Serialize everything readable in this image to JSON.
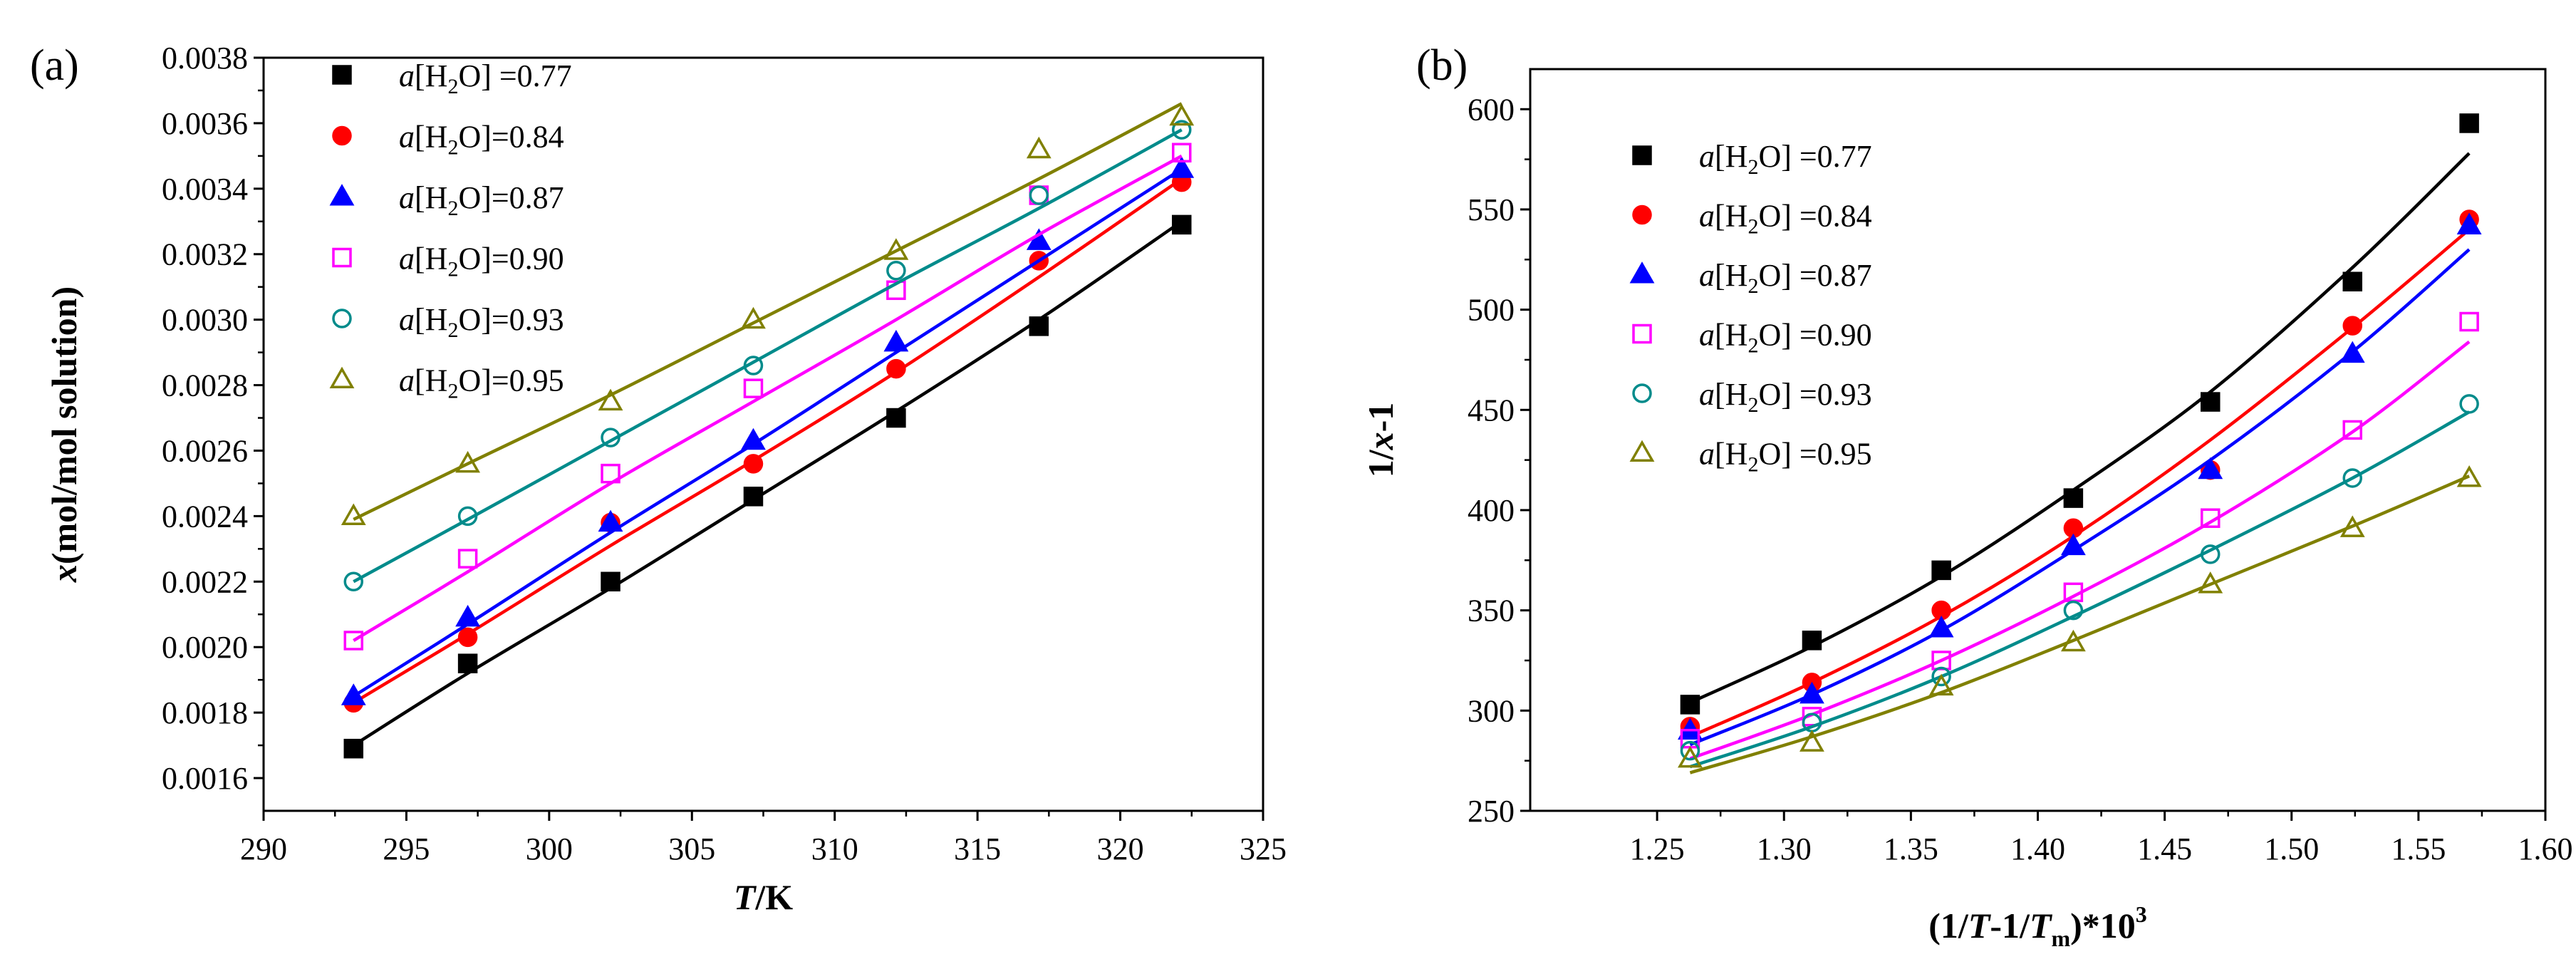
{
  "chart_data": [
    {
      "panel_label": "(a)",
      "type": "scatter",
      "xlabel_italic": "T",
      "xlabel_rest": "/K",
      "ylabel_italic": "x",
      "ylabel_rest": "(mol/mol solution)",
      "xlim": [
        290,
        325
      ],
      "ylim": [
        0.0015,
        0.0038
      ],
      "x_ticks": [
        290,
        295,
        300,
        305,
        310,
        315,
        320,
        325
      ],
      "x_tick_labels": [
        "290",
        "295",
        "300",
        "305",
        "310",
        "315",
        "320",
        "325"
      ],
      "y_ticks": [
        0.0016,
        0.0018,
        0.002,
        0.0022,
        0.0024,
        0.0026,
        0.0028,
        0.003,
        0.0032,
        0.0034,
        0.0036,
        0.0038
      ],
      "y_tick_labels": [
        "0.0016",
        "0.0018",
        "0.0020",
        "0.0022",
        "0.0024",
        "0.0026",
        "0.0028",
        "0.0030",
        "0.0032",
        "0.0034",
        "0.0036",
        "0.0038"
      ],
      "legend_position": "top-left",
      "x": [
        293.15,
        297.15,
        302.15,
        307.15,
        312.15,
        317.15,
        322.15
      ],
      "series": [
        {
          "name": "a[H2O] =0.77",
          "legend": {
            "pre": "a",
            "mid": "[H",
            "sub": "2",
            "post": "O] =0.77"
          },
          "marker": "filled-square",
          "color": "#000000",
          "values": [
            0.00169,
            0.00195,
            0.0022,
            0.00246,
            0.0027,
            0.00298,
            0.00329
          ],
          "fit": [
            0.0017,
            0.00192,
            0.00218,
            0.00245,
            0.00272,
            0.003,
            0.0033
          ]
        },
        {
          "name": "a[H2O]=0.84",
          "legend": {
            "pre": "a",
            "mid": "[H",
            "sub": "2",
            "post": "O]=0.84"
          },
          "marker": "filled-circle",
          "color": "#ff0000",
          "values": [
            0.00183,
            0.00203,
            0.00238,
            0.00256,
            0.00285,
            0.00318,
            0.00342
          ],
          "fit": [
            0.00183,
            0.00204,
            0.00231,
            0.00257,
            0.00284,
            0.00313,
            0.00343
          ]
        },
        {
          "name": "a[H2O]=0.87",
          "legend": {
            "pre": "a",
            "mid": "[H",
            "sub": "2",
            "post": "O]=0.87"
          },
          "marker": "filled-triangle",
          "color": "#0000ff",
          "values": [
            0.00185,
            0.00209,
            0.00238,
            0.00263,
            0.00293,
            0.00324,
            0.00346
          ],
          "fit": [
            0.00185,
            0.00207,
            0.00235,
            0.00262,
            0.0029,
            0.00318,
            0.00346
          ]
        },
        {
          "name": "a[H2O]=0.90",
          "legend": {
            "pre": "a",
            "mid": "[H",
            "sub": "2",
            "post": "O]=0.90"
          },
          "marker": "open-square",
          "color": "#ff00ff",
          "values": [
            0.00202,
            0.00227,
            0.00253,
            0.00279,
            0.00309,
            0.00338,
            0.00351
          ],
          "fit": [
            0.00202,
            0.00223,
            0.0025,
            0.00275,
            0.003,
            0.00326,
            0.0035
          ]
        },
        {
          "name": "a[H2O]=0.93",
          "legend": {
            "pre": "a",
            "mid": "[H",
            "sub": "2",
            "post": "O]=0.93"
          },
          "marker": "open-circle",
          "color": "#008b8b",
          "values": [
            0.0022,
            0.0024,
            0.00264,
            0.00286,
            0.00315,
            0.00338,
            0.00358
          ],
          "fit": [
            0.0022,
            0.00239,
            0.00263,
            0.00287,
            0.00311,
            0.00334,
            0.00358
          ]
        },
        {
          "name": "a[H2O]=0.95",
          "legend": {
            "pre": "a",
            "mid": "[H",
            "sub": "2",
            "post": "O]=0.95"
          },
          "marker": "open-triangle",
          "color": "#808000",
          "values": [
            0.0024,
            0.00256,
            0.00275,
            0.003,
            0.00321,
            0.00352,
            0.00362
          ],
          "fit": [
            0.00239,
            0.00256,
            0.00277,
            0.00299,
            0.00321,
            0.00343,
            0.00366
          ]
        }
      ]
    },
    {
      "panel_label": "(b)",
      "type": "scatter",
      "xlabel_pre": "(1/",
      "xlabel_T": "T",
      "xlabel_mid": "-1/",
      "xlabel_Tm": "T",
      "xlabel_sub": "m",
      "xlabel_post": ")*10",
      "xlabel_sup": "3",
      "ylabel_pre": "1/",
      "ylabel_italic": "x",
      "ylabel_post": "-1",
      "xlim": [
        1.2,
        1.6
      ],
      "ylim": [
        250,
        620
      ],
      "x_ticks": [
        1.25,
        1.3,
        1.35,
        1.4,
        1.45,
        1.5,
        1.55,
        1.6
      ],
      "x_tick_labels": [
        "1.25",
        "1.30",
        "1.35",
        "1.40",
        "1.45",
        "1.50",
        "1.55",
        "1.60"
      ],
      "y_ticks": [
        250,
        300,
        350,
        400,
        450,
        500,
        550,
        600
      ],
      "y_tick_labels": [
        "250",
        "300",
        "350",
        "400",
        "450",
        "500",
        "550",
        "600"
      ],
      "legend_position": "top-left",
      "x": [
        1.263,
        1.311,
        1.362,
        1.414,
        1.468,
        1.524,
        1.57
      ],
      "series": [
        {
          "name": "a[H2O] =0.77",
          "legend": {
            "pre": "a",
            "mid": "[H",
            "sub": "2",
            "post": "O] =0.77"
          },
          "marker": "filled-square",
          "color": "#000000",
          "values": [
            303,
            335,
            370,
            406,
            454,
            514,
            593
          ],
          "fit": [
            304,
            332,
            367,
            410,
            459,
            521,
            578
          ]
        },
        {
          "name": "a[H2O] =0.84",
          "legend": {
            "pre": "a",
            "mid": "[H",
            "sub": "2",
            "post": "O] =0.84"
          },
          "marker": "filled-circle",
          "color": "#ff0000",
          "values": [
            292,
            314,
            350,
            391,
            420,
            492,
            545
          ],
          "fit": [
            287,
            314,
            347,
            387,
            435,
            491,
            540
          ]
        },
        {
          "name": "a[H2O] =0.87",
          "legend": {
            "pre": "a",
            "mid": "[H",
            "sub": "2",
            "post": "O] =0.87"
          },
          "marker": "filled-triangle",
          "color": "#0000ff",
          "values": [
            290,
            308,
            341,
            382,
            420,
            478,
            542
          ],
          "fit": [
            283,
            308,
            340,
            380,
            425,
            479,
            530
          ]
        },
        {
          "name": "a[H2O] =0.90",
          "legend": {
            "pre": "a",
            "mid": "[H",
            "sub": "2",
            "post": "O] =0.90"
          },
          "marker": "open-square",
          "color": "#ff00ff",
          "values": [
            286,
            297,
            325,
            359,
            396,
            440,
            494
          ],
          "fit": [
            276,
            298,
            325,
            357,
            394,
            439,
            484
          ]
        },
        {
          "name": "a[H2O] =0.93",
          "legend": {
            "pre": "a",
            "mid": "[H",
            "sub": "2",
            "post": "O] =0.93"
          },
          "marker": "open-circle",
          "color": "#008b8b",
          "values": [
            280,
            294,
            317,
            350,
            378,
            416,
            453
          ],
          "fit": [
            272,
            292,
            317,
            347,
            380,
            416,
            449
          ]
        },
        {
          "name": "a[H2O] =0.95",
          "legend": {
            "pre": "a",
            "mid": "[H",
            "sub": "2",
            "post": "O] =0.95"
          },
          "marker": "open-triangle",
          "color": "#808000",
          "values": [
            276,
            284,
            312,
            334,
            363,
            391,
            416
          ],
          "fit": [
            269,
            287,
            309,
            335,
            363,
            392,
            417
          ]
        }
      ]
    }
  ]
}
